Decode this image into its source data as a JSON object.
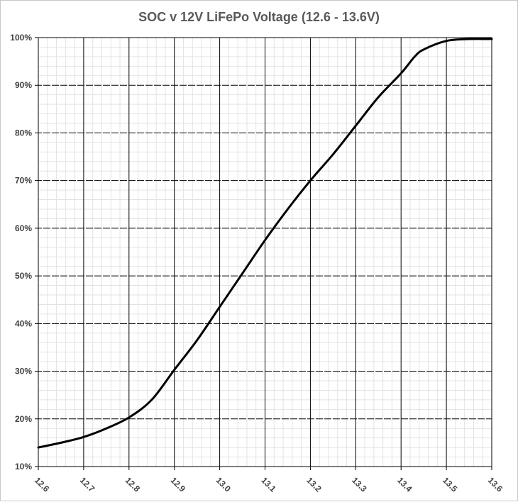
{
  "chart_data": {
    "type": "line",
    "title": "SOC v 12V LiFePo Voltage (12.6 - 13.6V)",
    "xlabel": "",
    "ylabel": "",
    "xlim": [
      12.6,
      13.6
    ],
    "ylim": [
      10,
      100
    ],
    "x_ticks": [
      "12.6",
      "12.7",
      "12.8",
      "12.9",
      "13.0",
      "13.1",
      "13.2",
      "13.3",
      "13.4",
      "13.5",
      "13.6"
    ],
    "y_ticks": [
      "10%",
      "20%",
      "30%",
      "40%",
      "50%",
      "60%",
      "70%",
      "80%",
      "90%",
      "100%"
    ],
    "grid": true,
    "minor_grid": true,
    "legend": "none",
    "line_color": "#000000",
    "series": [
      {
        "x": [
          12.6,
          12.65,
          12.7,
          12.75,
          12.8,
          12.85,
          12.9,
          12.95,
          13.0,
          13.05,
          13.1,
          13.15,
          13.2,
          13.25,
          13.3,
          13.35,
          13.4,
          13.43,
          13.45,
          13.5,
          13.55,
          13.6
        ],
        "y": [
          14,
          15,
          16.2,
          18,
          20.3,
          24,
          30.3,
          36.5,
          43.5,
          50.5,
          57.5,
          64,
          70,
          75.5,
          81.5,
          87.5,
          92.5,
          96,
          97.5,
          99.3,
          99.7,
          99.7
        ]
      }
    ]
  }
}
